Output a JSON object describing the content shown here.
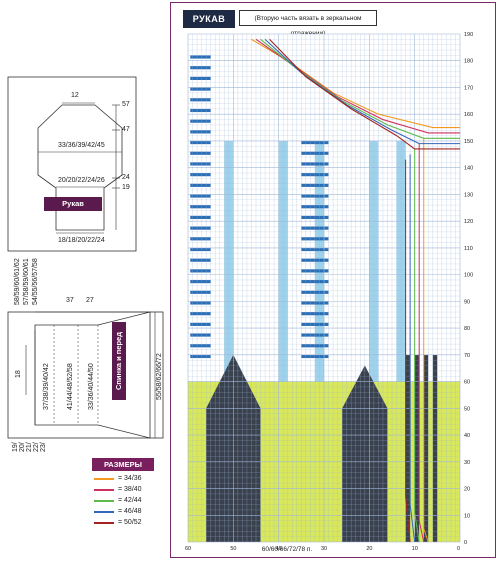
{
  "sleeve": {
    "tag": "РУКАВ",
    "note": "(Вторую часть вязать в зеркальном отражении)"
  },
  "schema_sleeve": {
    "top_width": "12",
    "mid_width": "33/36/39/42/45",
    "lower_width": "20/20/22/24/26",
    "bottom_width": "18/18/20/22/24",
    "label": "Рукав",
    "h1": "57",
    "h2": "47",
    "h3": "24",
    "h4": "19"
  },
  "schema_body": {
    "label": "Спинка и перед",
    "widths_top": [
      "58/59/60/61/62",
      "57/58/59/60/61",
      "54/55/56/57/58"
    ],
    "w1": "37",
    "w2": "27",
    "left_height": "18",
    "h_a": "37/38/39/40/42",
    "h_b": "41/44/48/52/58",
    "h_c": "33/36/40/44/50",
    "right_height": "55/58/62/66/72",
    "bottom_vals": [
      "19/",
      "20/",
      "21/",
      "22/",
      "23/"
    ]
  },
  "legend": {
    "title": "РАЗМЕРЫ",
    "items": [
      {
        "label": "= 34/36",
        "color": "#f39a1e"
      },
      {
        "label": "= 38/40",
        "color": "#d12f5e"
      },
      {
        "label": "= 42/44",
        "color": "#5dbb4a"
      },
      {
        "label": "= 46/48",
        "color": "#3566b8"
      },
      {
        "label": "= 50/52",
        "color": "#a3241f"
      }
    ]
  },
  "grid": {
    "row_labels": [
      "190",
      "180",
      "170",
      "160",
      "150",
      "140",
      "130",
      "120",
      "110",
      "100",
      "90",
      "80",
      "70",
      "60",
      "50",
      "40",
      "30",
      "20",
      "10",
      "0"
    ],
    "col_labels": [
      "60",
      "50",
      "40",
      "30",
      "20",
      "10",
      "0"
    ],
    "stitch_text": "60/60/66/72/78 п.",
    "colors": {
      "background": "#ffffff",
      "grid_line": "#9fb6d6",
      "yellow": "#d8e85a",
      "dark": "#3a414e",
      "light_blue": "#9fd3ec",
      "blue_bar": "#2b6fb7",
      "magenta_bar": "#b3246e"
    }
  }
}
